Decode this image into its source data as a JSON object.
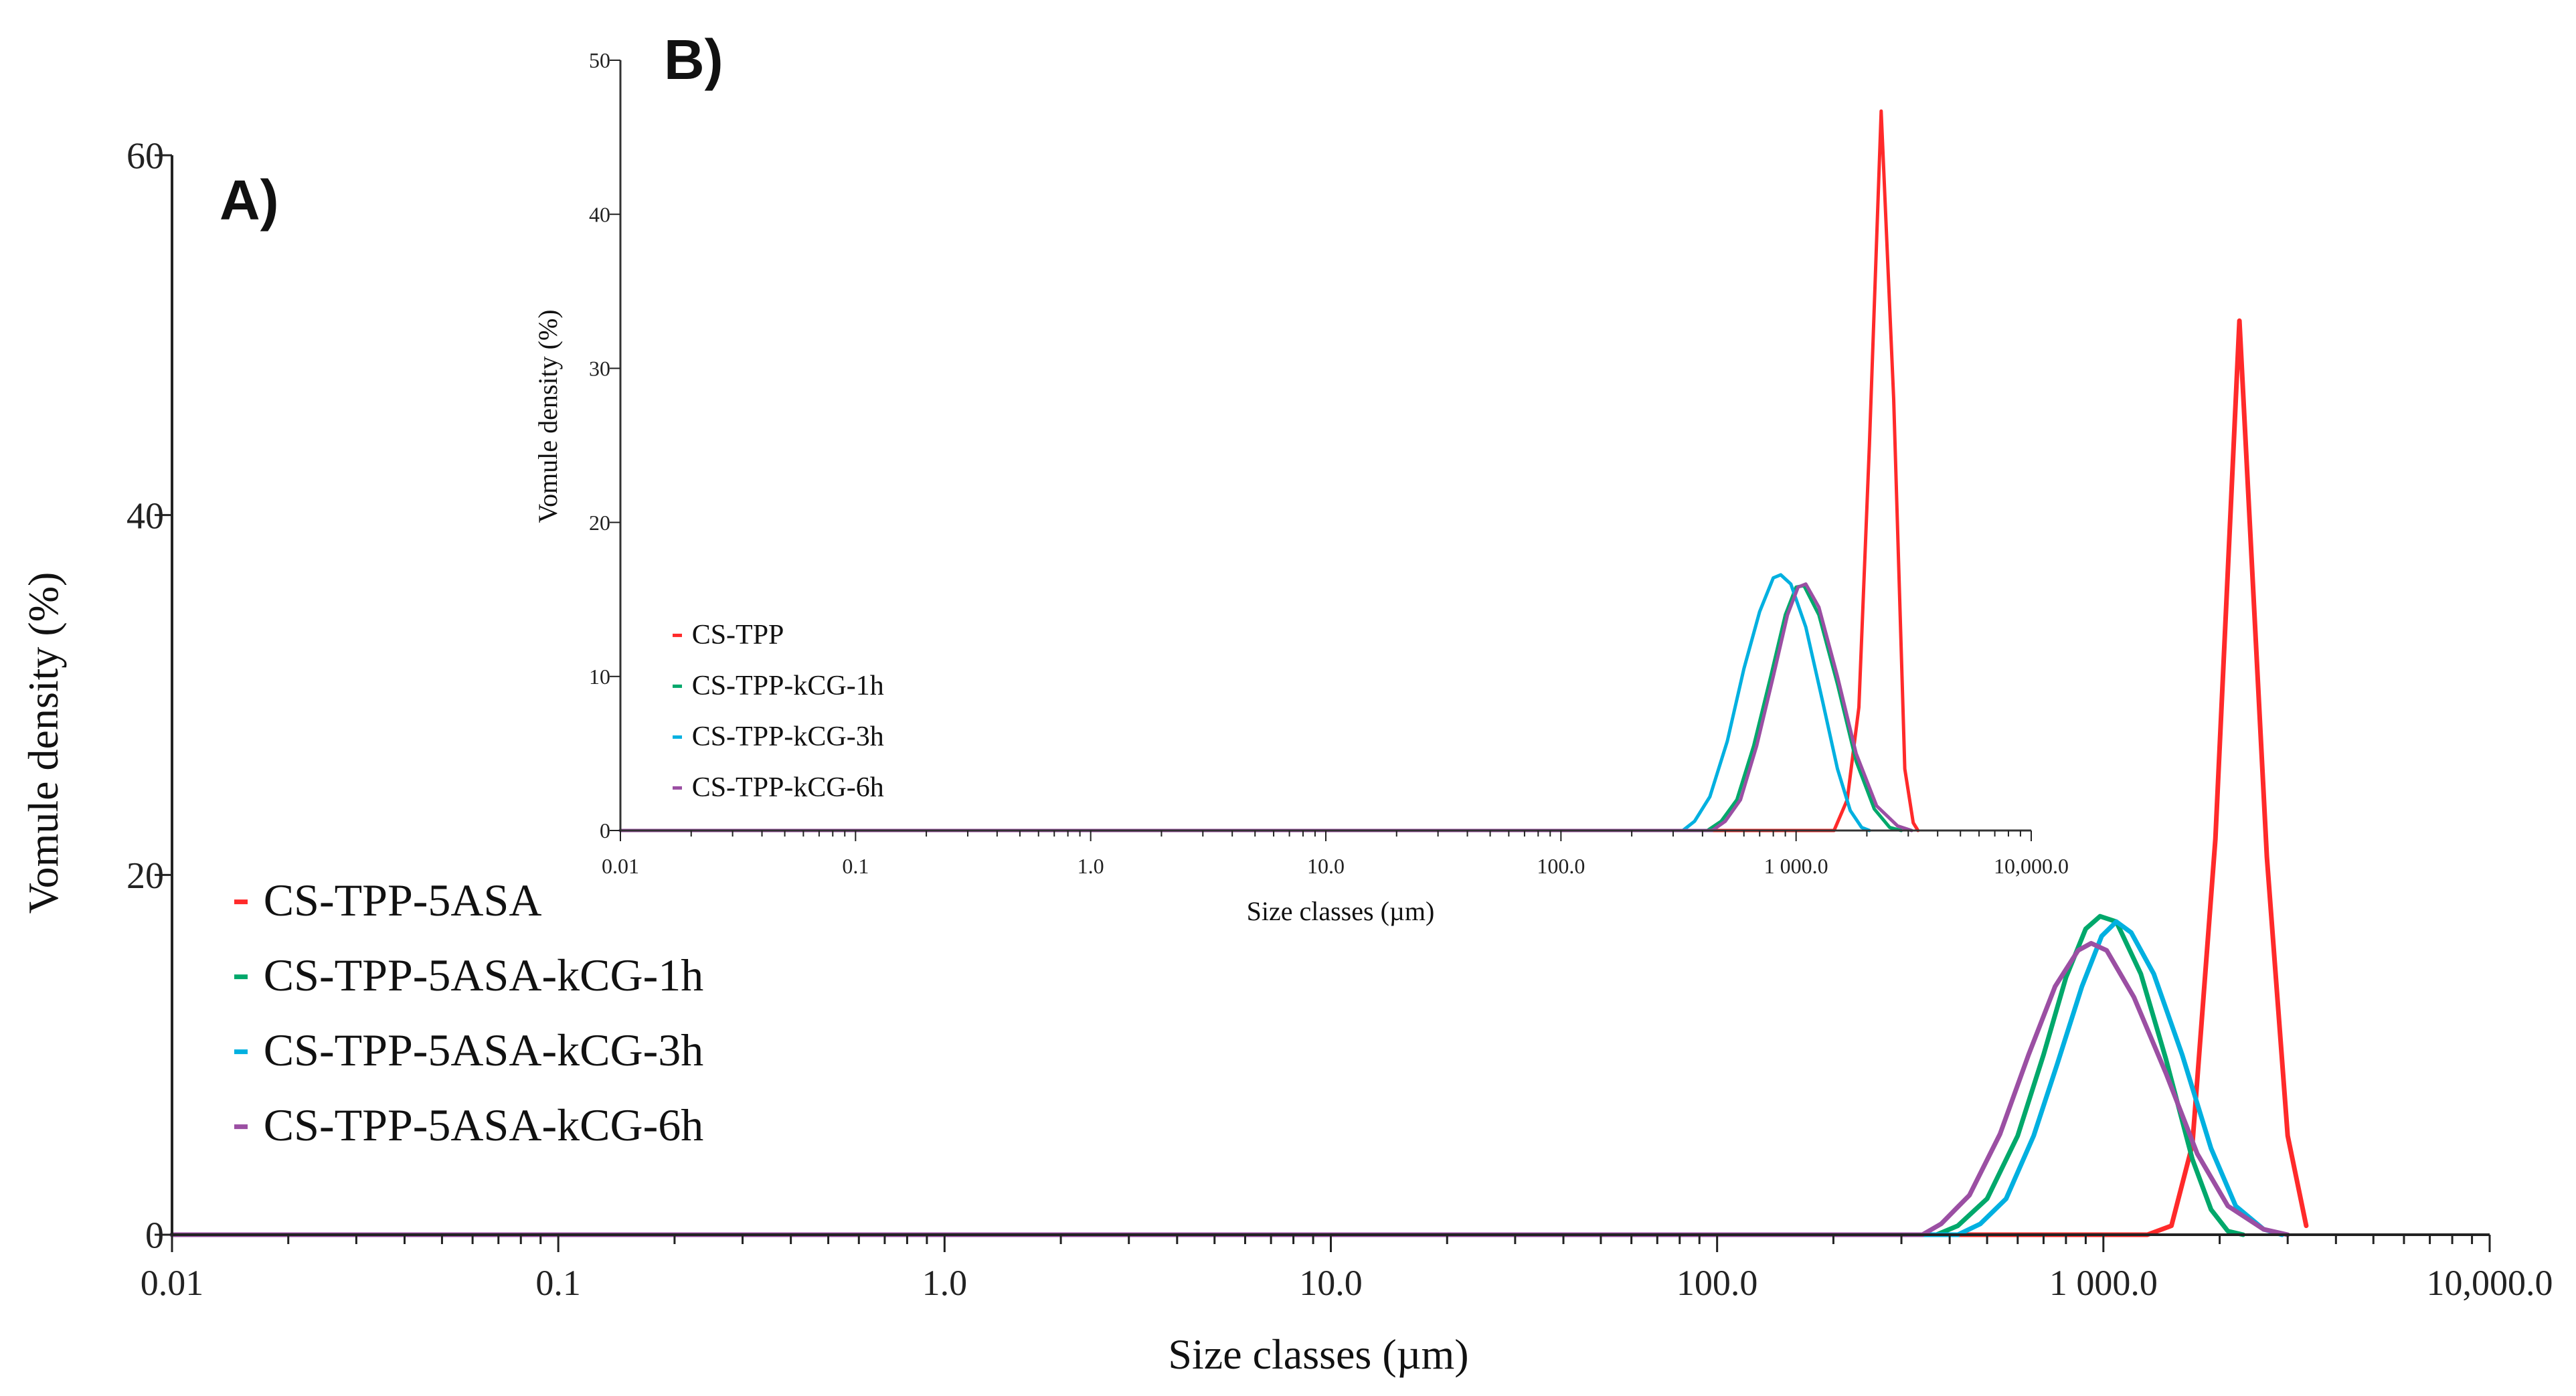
{
  "chart_data": [
    {
      "id": "A",
      "type": "line",
      "panel_label": "A)",
      "xscale": "log",
      "xlim": [
        0.01,
        10000
      ],
      "ylim": [
        0,
        60
      ],
      "yticks": [
        0,
        20,
        40,
        60
      ],
      "xticks": [
        0.01,
        0.1,
        1,
        10,
        100,
        1000,
        10000
      ],
      "xtick_labels": [
        "0.01",
        "0.1",
        "1.0",
        "10.0",
        "100.0",
        "1 000.0",
        "10,000.0"
      ],
      "ytick_labels": [
        "0",
        "20",
        "40",
        "60"
      ],
      "xlabel": "Size classes (µm)",
      "ylabel": "Vomule density (%)",
      "series": [
        {
          "name": "CS-TPP-5ASA",
          "color": "#ff2a2a",
          "points": [
            [
              0.01,
              0
            ],
            [
              1300,
              0
            ],
            [
              1500,
              0.5
            ],
            [
              1700,
              5
            ],
            [
              1950,
              22
            ],
            [
              2250,
              50.8
            ],
            [
              2650,
              21
            ],
            [
              3000,
              5.5
            ],
            [
              3350,
              0.5
            ]
          ]
        },
        {
          "name": "CS-TPP-5ASA-kCG-1h",
          "color": "#00a86b",
          "points": [
            [
              0.01,
              0
            ],
            [
              370,
              0
            ],
            [
              420,
              0.5
            ],
            [
              500,
              2
            ],
            [
              600,
              5.5
            ],
            [
              700,
              10
            ],
            [
              800,
              14.3
            ],
            [
              900,
              17
            ],
            [
              980,
              17.7
            ],
            [
              1080,
              17.4
            ],
            [
              1250,
              14.5
            ],
            [
              1450,
              9.8
            ],
            [
              1700,
              4.2
            ],
            [
              1900,
              1.4
            ],
            [
              2100,
              0.2
            ],
            [
              2300,
              0
            ]
          ]
        },
        {
          "name": "CS-TPP-5ASA-kCG-3h",
          "color": "#00b0e0",
          "points": [
            [
              0.01,
              0
            ],
            [
              420,
              0
            ],
            [
              480,
              0.6
            ],
            [
              560,
              2
            ],
            [
              660,
              5.5
            ],
            [
              760,
              9.5
            ],
            [
              880,
              13.8
            ],
            [
              990,
              16.6
            ],
            [
              1080,
              17.4
            ],
            [
              1180,
              16.8
            ],
            [
              1350,
              14.5
            ],
            [
              1600,
              10
            ],
            [
              1900,
              4.8
            ],
            [
              2200,
              1.6
            ],
            [
              2600,
              0.3
            ],
            [
              2900,
              0
            ]
          ]
        },
        {
          "name": "CS-TPP-5ASA-kCG-6h",
          "color": "#9b4fa3",
          "points": [
            [
              0.01,
              0
            ],
            [
              340,
              0
            ],
            [
              380,
              0.6
            ],
            [
              450,
              2.2
            ],
            [
              540,
              5.6
            ],
            [
              640,
              10
            ],
            [
              750,
              13.8
            ],
            [
              860,
              15.8
            ],
            [
              930,
              16.2
            ],
            [
              1020,
              15.8
            ],
            [
              1200,
              13.2
            ],
            [
              1450,
              9
            ],
            [
              1750,
              4.5
            ],
            [
              2100,
              1.6
            ],
            [
              2600,
              0.3
            ],
            [
              3000,
              0
            ]
          ]
        }
      ],
      "legend": {
        "entries": [
          "CS-TPP-5ASA",
          "CS-TPP-5ASA-kCG-1h",
          "CS-TPP-5ASA-kCG-3h",
          "CS-TPP-5ASA-kCG-6h"
        ]
      }
    },
    {
      "id": "B",
      "type": "line",
      "panel_label": "B)",
      "xscale": "log",
      "xlim": [
        0.01,
        10000
      ],
      "ylim": [
        0,
        50
      ],
      "yticks": [
        0,
        10,
        20,
        30,
        40,
        50
      ],
      "xticks": [
        0.01,
        0.1,
        1,
        10,
        100,
        1000,
        10000
      ],
      "xtick_labels": [
        "0.01",
        "0.1",
        "1.0",
        "10.0",
        "100.0",
        "1 000.0",
        "10,000.0"
      ],
      "ytick_labels": [
        "0",
        "10",
        "20",
        "30",
        "40",
        "50"
      ],
      "xlabel": "Size classes (µm)",
      "ylabel": "Vomule density (%)",
      "series": [
        {
          "name": "CS-TPP",
          "color": "#ff2a2a",
          "points": [
            [
              0.01,
              0
            ],
            [
              1450,
              0
            ],
            [
              1650,
              2
            ],
            [
              1850,
              8
            ],
            [
              2050,
              25
            ],
            [
              2300,
              46.7
            ],
            [
              2600,
              28
            ],
            [
              2900,
              4
            ],
            [
              3150,
              0.5
            ],
            [
              3300,
              0
            ]
          ]
        },
        {
          "name": "CS-TPP-kCG-1h",
          "color": "#00a86b",
          "points": [
            [
              0.01,
              0
            ],
            [
              420,
              0
            ],
            [
              480,
              0.6
            ],
            [
              560,
              2
            ],
            [
              660,
              5.5
            ],
            [
              780,
              10
            ],
            [
              900,
              14
            ],
            [
              1000,
              15.8
            ],
            [
              1080,
              15.9
            ],
            [
              1250,
              14
            ],
            [
              1500,
              9.5
            ],
            [
              1800,
              4.5
            ],
            [
              2150,
              1.4
            ],
            [
              2500,
              0.2
            ],
            [
              2800,
              0
            ]
          ]
        },
        {
          "name": "CS-TPP-kCG-3h",
          "color": "#00b0e0",
          "points": [
            [
              0.01,
              0
            ],
            [
              330,
              0
            ],
            [
              370,
              0.6
            ],
            [
              430,
              2.2
            ],
            [
              510,
              5.8
            ],
            [
              600,
              10.5
            ],
            [
              700,
              14.2
            ],
            [
              800,
              16.4
            ],
            [
              860,
              16.6
            ],
            [
              950,
              16
            ],
            [
              1100,
              13.2
            ],
            [
              1300,
              8.3
            ],
            [
              1500,
              4
            ],
            [
              1700,
              1.3
            ],
            [
              1900,
              0.2
            ],
            [
              2050,
              0
            ]
          ]
        },
        {
          "name": "CS-TPP-kCG-6h",
          "color": "#9b4fa3",
          "points": [
            [
              0.01,
              0
            ],
            [
              440,
              0
            ],
            [
              500,
              0.6
            ],
            [
              580,
              2
            ],
            [
              680,
              5.5
            ],
            [
              800,
              10
            ],
            [
              920,
              14
            ],
            [
              1020,
              15.8
            ],
            [
              1100,
              16
            ],
            [
              1250,
              14.5
            ],
            [
              1500,
              10
            ],
            [
              1800,
              5
            ],
            [
              2200,
              1.6
            ],
            [
              2700,
              0.3
            ],
            [
              3100,
              0
            ]
          ]
        }
      ],
      "legend": {
        "entries": [
          "CS-TPP",
          "CS-TPP-kCG-1h",
          "CS-TPP-kCG-3h",
          "CS-TPP-kCG-6h"
        ]
      }
    }
  ]
}
